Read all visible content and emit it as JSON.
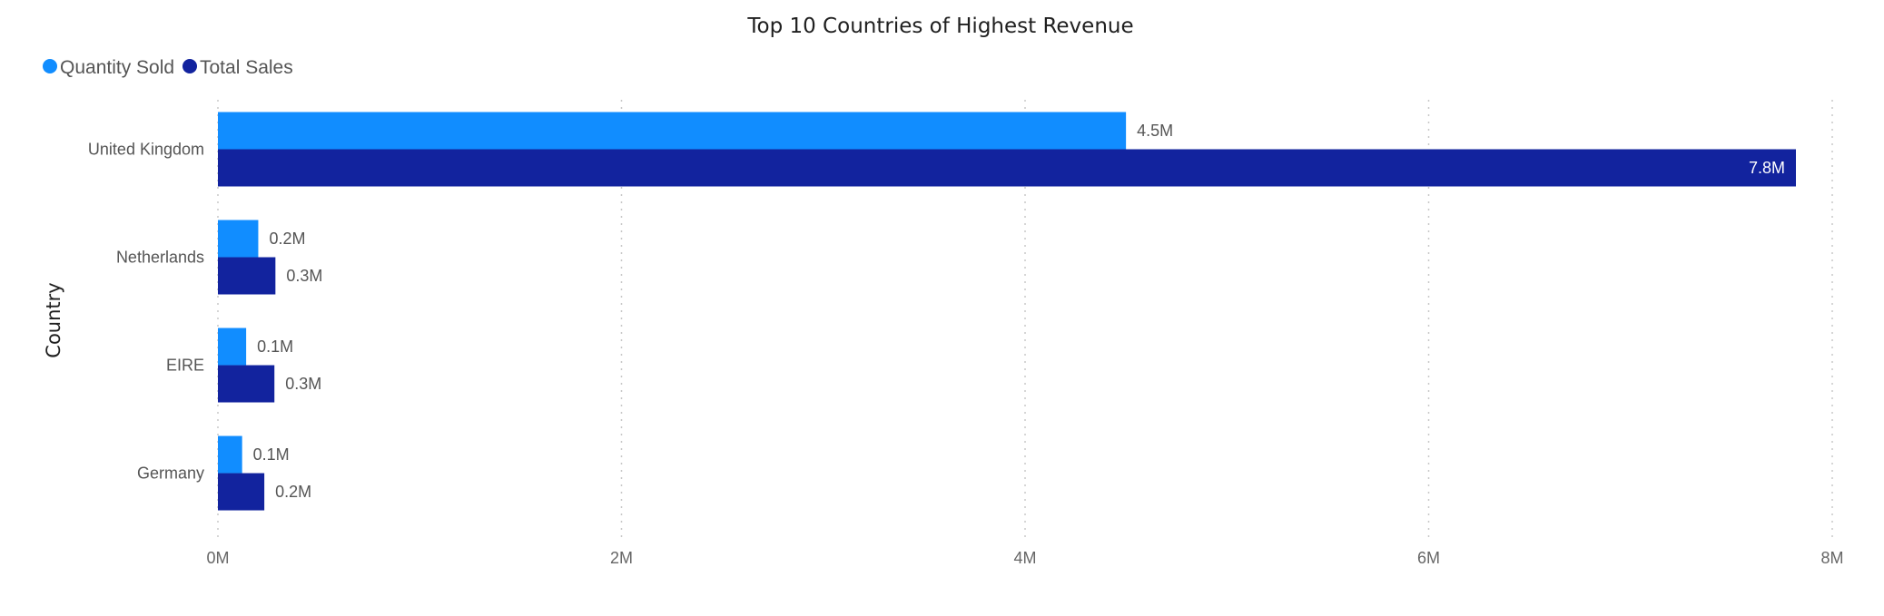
{
  "chart_data": {
    "type": "bar",
    "orientation": "horizontal",
    "title": "Top 10 Countries of Highest Revenue",
    "ylabel": "Country",
    "xlabel": "",
    "categories": [
      "United Kingdom",
      "Netherlands",
      "EIRE",
      "Germany"
    ],
    "series": [
      {
        "name": "Quantity Sold",
        "color": "#118dff",
        "values": [
          4.5,
          0.2,
          0.14,
          0.12
        ],
        "labels": [
          "4.5M",
          "0.2M",
          "0.1M",
          "0.1M"
        ]
      },
      {
        "name": "Total Sales",
        "color": "#12239e",
        "values": [
          7.82,
          0.285,
          0.28,
          0.23
        ],
        "labels": [
          "7.8M",
          "0.3M",
          "0.3M",
          "0.2M"
        ]
      }
    ],
    "xlim": [
      0,
      8
    ],
    "xticks": [
      {
        "value": 0,
        "label": "0M"
      },
      {
        "value": 2,
        "label": "2M"
      },
      {
        "value": 4,
        "label": "4M"
      },
      {
        "value": 6,
        "label": "6M"
      },
      {
        "value": 8,
        "label": "8M"
      }
    ],
    "grid": true,
    "legend_position": "top-left"
  }
}
